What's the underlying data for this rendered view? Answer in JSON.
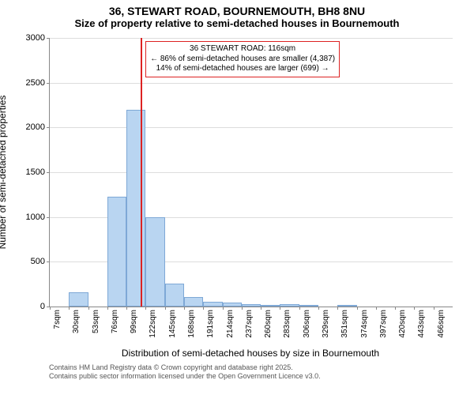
{
  "title": "36, STEWART ROAD, BOURNEMOUTH, BH8 8NU",
  "subtitle": "Size of property relative to semi-detached houses in Bournemouth",
  "chart": {
    "type": "histogram",
    "background_color": "#ffffff",
    "grid_color": "#dddddd",
    "axis_color": "#888888",
    "bar_fill": "#b9d5f1",
    "bar_border": "#7ea8d6",
    "marker_color": "#d22",
    "ylim": [
      0,
      3000
    ],
    "ytick_step": 500,
    "ylabel": "Number of semi-detached properties",
    "xlabel": "Distribution of semi-detached houses by size in Bournemouth",
    "x_categories": [
      "7sqm",
      "30sqm",
      "53sqm",
      "76sqm",
      "99sqm",
      "122sqm",
      "145sqm",
      "168sqm",
      "191sqm",
      "214sqm",
      "237sqm",
      "260sqm",
      "283sqm",
      "306sqm",
      "329sqm",
      "351sqm",
      "374sqm",
      "397sqm",
      "420sqm",
      "443sqm",
      "466sqm"
    ],
    "values": [
      0,
      155,
      0,
      1230,
      2200,
      1000,
      255,
      110,
      50,
      40,
      30,
      20,
      25,
      10,
      0,
      10,
      0,
      0,
      0,
      0,
      0
    ],
    "marker_value": 116,
    "x_min": 7,
    "x_step": 23,
    "annotation": {
      "line1": "36 STEWART ROAD: 116sqm",
      "line2": "← 86% of semi-detached houses are smaller (4,387)",
      "line3": "14% of semi-detached houses are larger (699) →"
    }
  },
  "footer": {
    "line1": "Contains HM Land Registry data © Crown copyright and database right 2025.",
    "line2": "Contains public sector information licensed under the Open Government Licence v3.0."
  }
}
